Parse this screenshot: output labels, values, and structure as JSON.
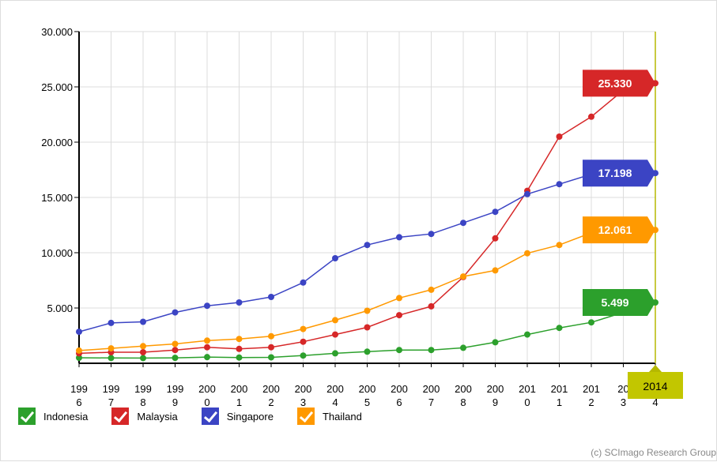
{
  "chart_data": {
    "type": "line",
    "x": [
      "1996",
      "1997",
      "1998",
      "1999",
      "2000",
      "2001",
      "2002",
      "2003",
      "2004",
      "2005",
      "2006",
      "2007",
      "2008",
      "2009",
      "2010",
      "2011",
      "2012",
      "2013",
      "2014"
    ],
    "x_tick_labels": [
      [
        "199",
        "6"
      ],
      [
        "199",
        "7"
      ],
      [
        "199",
        "8"
      ],
      [
        "199",
        "9"
      ],
      [
        "200",
        "0"
      ],
      [
        "200",
        "1"
      ],
      [
        "200",
        "2"
      ],
      [
        "200",
        "3"
      ],
      [
        "200",
        "4"
      ],
      [
        "200",
        "5"
      ],
      [
        "200",
        "6"
      ],
      [
        "200",
        "7"
      ],
      [
        "200",
        "8"
      ],
      [
        "200",
        "9"
      ],
      [
        "201",
        "0"
      ],
      [
        "201",
        "1"
      ],
      [
        "201",
        "2"
      ],
      [
        "20",
        "3"
      ],
      [
        "",
        "4"
      ]
    ],
    "highlight_x_label": "2014",
    "y_ticks": [
      "5.000",
      "10.000",
      "15.000",
      "20.000",
      "25.000",
      "30.000"
    ],
    "ylim": [
      0,
      30000
    ],
    "grid": true,
    "legend_position": "bottom-left",
    "series": [
      {
        "name": "Indonesia",
        "color": "#2ca02c",
        "end_label": "5.499",
        "values": [
          500,
          480,
          470,
          490,
          560,
          520,
          540,
          700,
          900,
          1050,
          1200,
          1200,
          1400,
          1900,
          2600,
          3200,
          3700,
          4600,
          5499
        ]
      },
      {
        "name": "Malaysia",
        "color": "#d62728",
        "end_label": "25.330",
        "values": [
          900,
          1000,
          1000,
          1200,
          1450,
          1300,
          1450,
          1950,
          2600,
          3250,
          4350,
          5150,
          7800,
          11300,
          15600,
          20500,
          22300,
          24700,
          25330
        ]
      },
      {
        "name": "Singapore",
        "color": "#3b44c4",
        "end_label": "17.198",
        "values": [
          2850,
          3650,
          3750,
          4600,
          5200,
          5500,
          6000,
          7300,
          9500,
          10700,
          11400,
          11700,
          12700,
          13700,
          15300,
          16200,
          17100,
          17198,
          17198
        ]
      },
      {
        "name": "Thailand",
        "color": "#ff9900",
        "end_label": "12.061",
        "values": [
          1150,
          1350,
          1550,
          1750,
          2050,
          2200,
          2450,
          3100,
          3900,
          4750,
          5900,
          6650,
          7850,
          8400,
          9950,
          10700,
          11800,
          12061,
          12061
        ]
      }
    ]
  },
  "copyright": "(c) SCImago Research Group"
}
